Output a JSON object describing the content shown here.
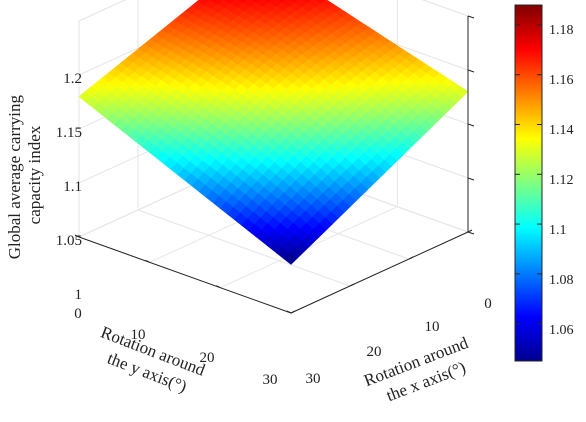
{
  "chart_data": {
    "type": "surface",
    "zlabel": "Global average carrying capacity index",
    "xlabel": "Rotation around the x axis(°)",
    "ylabel": "Rotation around the y axis(°)",
    "x_ticks": [
      "0",
      "10",
      "20",
      "30"
    ],
    "y_ticks": [
      "0",
      "10",
      "20",
      "30"
    ],
    "z_ticks": [
      "1",
      "1.05",
      "1.1",
      "1.15",
      "1.2"
    ],
    "xlim": [
      0,
      30
    ],
    "ylim": [
      0,
      30
    ],
    "zlim": [
      1,
      1.2
    ],
    "grid": true,
    "colormap": "jet",
    "colorbar": {
      "position": "right",
      "range": [
        1.045,
        1.188
      ],
      "ticks": [
        "1.06",
        "1.08",
        "1.1",
        "1.12",
        "1.14",
        "1.16",
        "1.18"
      ]
    },
    "corners": [
      {
        "x": 0,
        "y": 0,
        "z": 1.187
      },
      {
        "x": 30,
        "y": 0,
        "z": 1.13
      },
      {
        "x": 0,
        "y": 30,
        "z": 1.13
      },
      {
        "x": 30,
        "y": 30,
        "z": 1.045
      }
    ]
  }
}
